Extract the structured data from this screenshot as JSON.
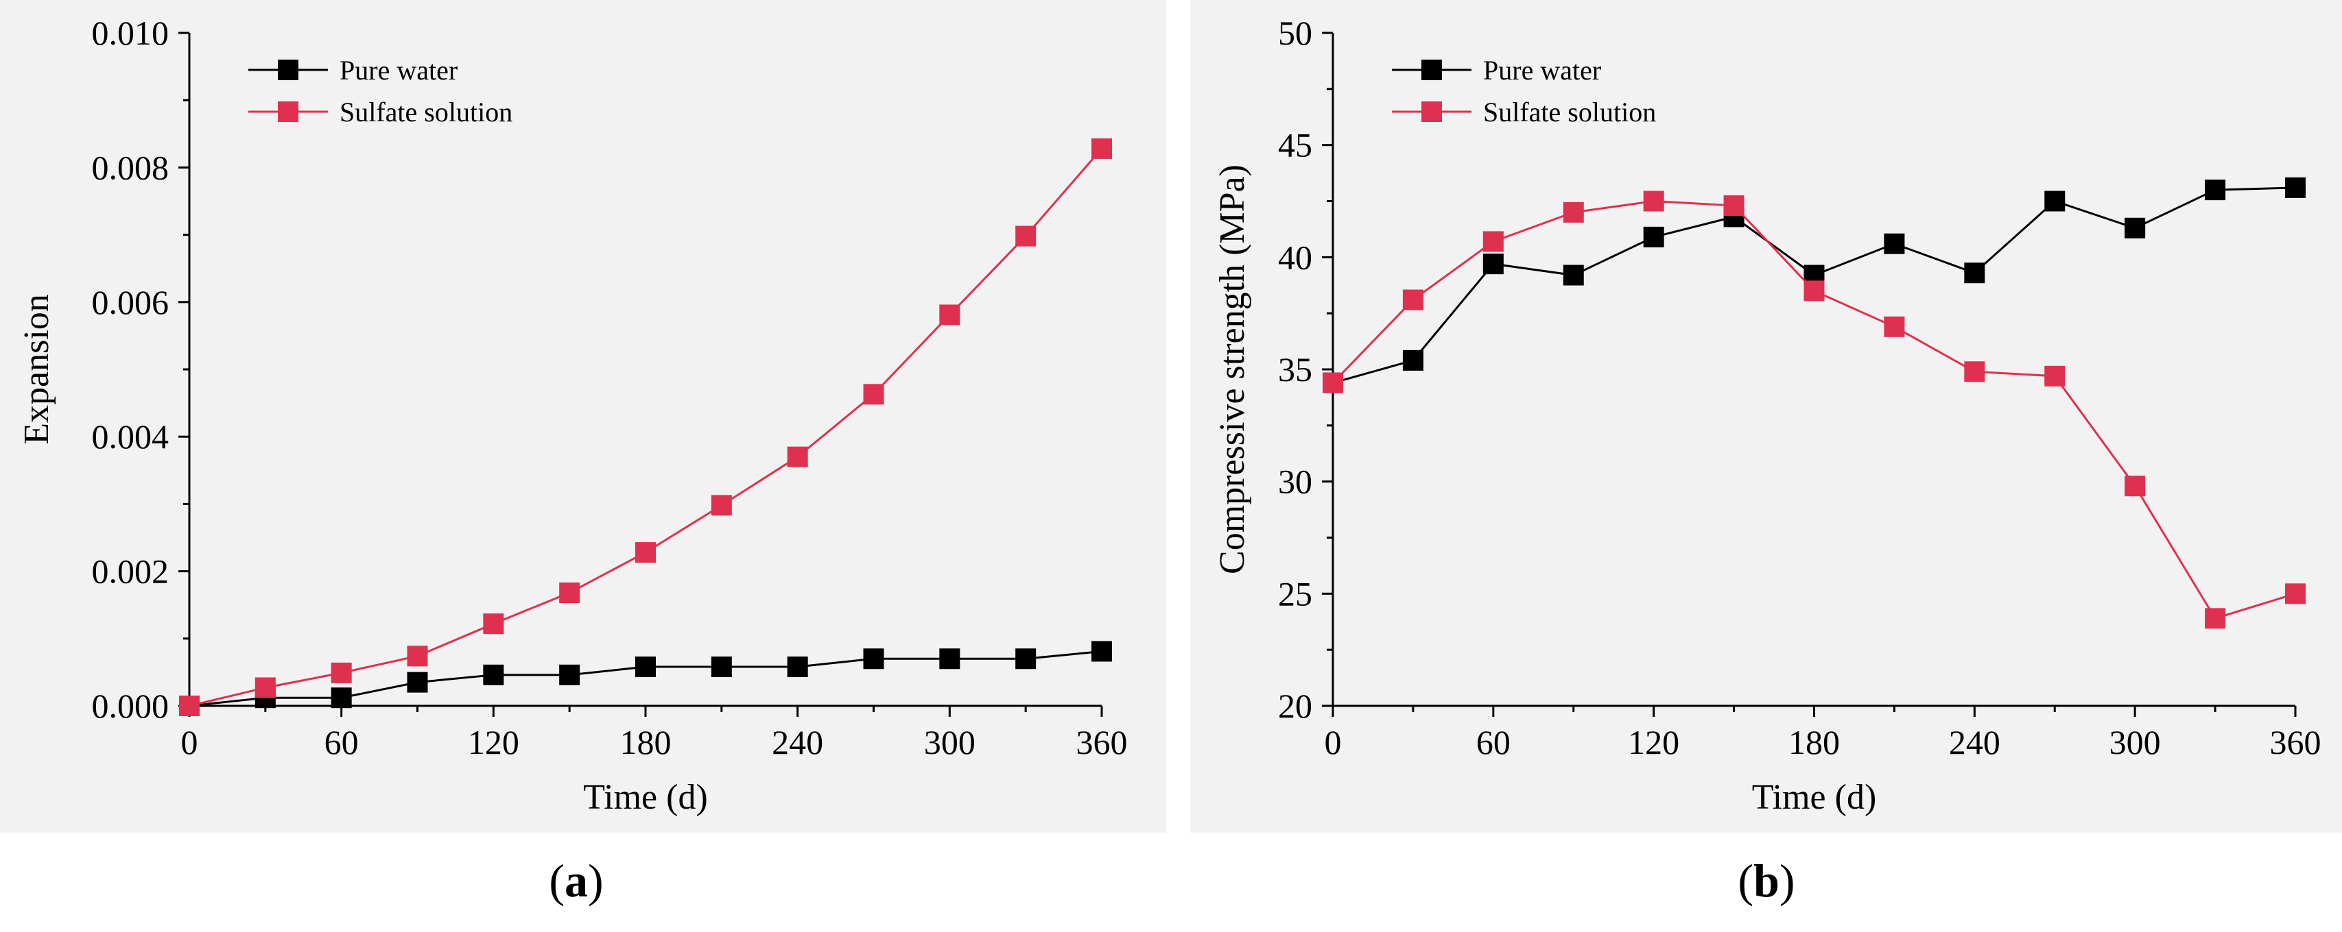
{
  "colors": {
    "pure_water": "#000000",
    "sulfate": "#e0304f",
    "panel_background": "#f2f2f2"
  },
  "chart_data": [
    {
      "type": "line",
      "panel_label": "a",
      "title": "",
      "xlabel": "Time (d)",
      "ylabel": "Expansion",
      "xlim": [
        0,
        360
      ],
      "ylim": [
        0,
        0.01
      ],
      "xticks": [
        0,
        60,
        120,
        180,
        240,
        300,
        360
      ],
      "yticks": [
        0,
        0.002,
        0.004,
        0.006,
        0.008,
        0.01
      ],
      "xtick_labels": [
        "0",
        "60",
        "120",
        "180",
        "240",
        "300",
        "360"
      ],
      "ytick_labels": [
        "0.000",
        "0.002",
        "0.004",
        "0.006",
        "0.008",
        "0.010"
      ],
      "legend_position": "top-left",
      "grid": false,
      "x": [
        0,
        30,
        60,
        90,
        120,
        150,
        180,
        210,
        240,
        270,
        300,
        330,
        360
      ],
      "series": [
        {
          "name": "Pure water",
          "color": "#000000",
          "marker": "square",
          "values": [
            0,
            0.00012,
            0.00012,
            0.00035,
            0.00046,
            0.00046,
            0.00058,
            0.00058,
            0.00058,
            0.0007,
            0.0007,
            0.0007,
            0.00081
          ]
        },
        {
          "name": "Sulfate solution",
          "color": "#e0304f",
          "marker": "square",
          "values": [
            0,
            0.00027,
            0.00049,
            0.00074,
            0.00122,
            0.00168,
            0.00228,
            0.00298,
            0.0037,
            0.00463,
            0.00581,
            0.00698,
            0.00828
          ]
        }
      ]
    },
    {
      "type": "line",
      "panel_label": "b",
      "title": "",
      "xlabel": "Time (d)",
      "ylabel": "Compressive strength (MPa)",
      "xlim": [
        0,
        360
      ],
      "ylim": [
        20,
        50
      ],
      "xticks": [
        0,
        60,
        120,
        180,
        240,
        300,
        360
      ],
      "yticks": [
        20,
        25,
        30,
        35,
        40,
        45,
        50
      ],
      "xtick_labels": [
        "0",
        "60",
        "120",
        "180",
        "240",
        "300",
        "360"
      ],
      "ytick_labels": [
        "20",
        "25",
        "30",
        "35",
        "40",
        "45",
        "50"
      ],
      "legend_position": "top-left",
      "grid": false,
      "x": [
        0,
        30,
        60,
        90,
        120,
        150,
        180,
        210,
        240,
        270,
        300,
        330,
        360
      ],
      "series": [
        {
          "name": "Pure water",
          "color": "#000000",
          "marker": "square",
          "values": [
            34.4,
            35.4,
            39.7,
            39.2,
            40.9,
            41.8,
            39.2,
            40.6,
            39.3,
            42.5,
            41.3,
            43.0,
            43.1
          ]
        },
        {
          "name": "Sulfate solution",
          "color": "#e0304f",
          "marker": "square",
          "values": [
            34.4,
            38.1,
            40.7,
            42.0,
            42.5,
            42.3,
            38.5,
            36.9,
            34.9,
            34.7,
            29.8,
            23.9,
            25.0
          ]
        }
      ]
    }
  ]
}
